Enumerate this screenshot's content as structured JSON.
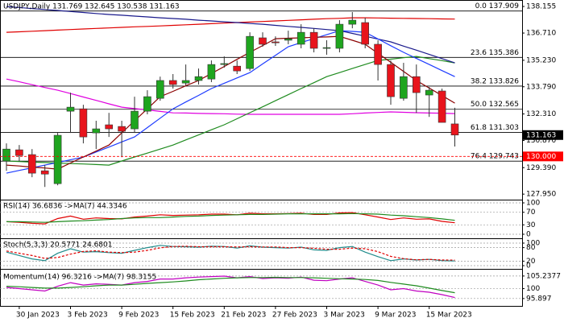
{
  "chart_data": [
    {
      "type": "candlestick",
      "title": "USDJPY,Daily  131.769 132.645 130.538 131.163",
      "categories": [
        null,
        "30 Jan 2023",
        null,
        null,
        null,
        "3 Feb 2023",
        null,
        null,
        null,
        "9 Feb 2023",
        null,
        null,
        null,
        "15 Feb 2023",
        null,
        null,
        null,
        "21 Feb 2023",
        null,
        null,
        null,
        "27 Feb 2023",
        null,
        null,
        null,
        "3 Mar 2023",
        null,
        null,
        null,
        "9 Mar 2023",
        null,
        null,
        null,
        "15 Mar 2023",
        null,
        null
      ],
      "open": [
        129.75,
        130.36,
        130.1,
        129.22,
        128.52,
        132.46,
        132.59,
        131.28,
        131.72,
        131.63,
        131.5,
        132.46,
        133.16,
        134.13,
        133.99,
        134.13,
        134.21,
        135.0,
        134.91,
        134.78,
        136.45,
        136.23,
        136.32,
        136.1,
        136.75,
        135.88,
        135.88,
        137.19,
        137.28,
        136.1,
        135.0,
        133.16,
        134.34,
        133.34,
        133.56,
        131.769
      ],
      "high": [
        130.71,
        130.62,
        130.4,
        129.53,
        131.28,
        133.47,
        132.81,
        131.94,
        132.37,
        131.94,
        133.25,
        133.6,
        134.34,
        134.48,
        135.0,
        134.78,
        135.22,
        135.44,
        135.22,
        136.75,
        136.75,
        136.53,
        136.84,
        137.19,
        136.97,
        136.32,
        137.41,
        137.85,
        137.54,
        136.32,
        135.22,
        135.09,
        135.0,
        133.78,
        133.69,
        132.645
      ],
      "low": [
        129.22,
        129.75,
        128.87,
        128.34,
        128.43,
        131.28,
        130.71,
        130.4,
        131.06,
        129.96,
        131.28,
        132.29,
        133.03,
        133.69,
        133.86,
        133.91,
        134.04,
        134.83,
        134.48,
        134.65,
        135.97,
        136.01,
        136.1,
        135.88,
        135.66,
        135.53,
        135.66,
        136.97,
        135.88,
        134.13,
        132.81,
        133.03,
        132.37,
        132.15,
        131.85,
        130.538
      ],
      "close": [
        130.4,
        130.05,
        129.09,
        129.04,
        131.15,
        132.68,
        131.06,
        131.5,
        131.5,
        131.37,
        132.46,
        133.25,
        134.13,
        133.91,
        134.13,
        134.34,
        135.0,
        135.05,
        134.65,
        136.53,
        136.1,
        136.18,
        136.4,
        136.75,
        135.88,
        135.92,
        137.19,
        137.41,
        136.1,
        135.0,
        133.25,
        134.34,
        133.47,
        133.6,
        131.85,
        131.163
      ],
      "up_color": "#1fa51f",
      "down_color": "#e8141c",
      "series": [
        {
          "color": "#e00000",
          "values": [
            136.75,
            136.78,
            136.81,
            136.84,
            136.87,
            136.9,
            136.93,
            136.96,
            136.99,
            137.02,
            137.05,
            137.07,
            137.1,
            137.13,
            137.16,
            137.19,
            137.22,
            137.25,
            137.28,
            137.31,
            137.34,
            137.37,
            137.4,
            137.43,
            137.46,
            137.49,
            137.51,
            137.54,
            137.54,
            137.53,
            137.52,
            137.51,
            137.5,
            137.49,
            137.48,
            137.47
          ]
        },
        {
          "color": "#e000e0",
          "values": [
            134.21,
            134.06,
            133.9,
            133.75,
            133.6,
            133.42,
            133.23,
            133.05,
            132.86,
            132.68,
            132.6,
            132.53,
            132.45,
            132.37,
            132.36,
            132.34,
            132.33,
            132.32,
            132.3,
            132.29,
            132.29,
            132.29,
            132.29,
            132.29,
            132.29,
            132.29,
            132.29,
            132.32,
            132.36,
            132.39,
            132.42,
            132.4,
            132.38,
            132.36,
            132.35,
            132.33
          ]
        },
        {
          "color": "#1f8b1f",
          "values": [
            129.75,
            129.72,
            129.69,
            129.67,
            129.64,
            129.61,
            129.59,
            129.56,
            129.53,
            129.75,
            129.97,
            130.18,
            130.4,
            130.62,
            130.9,
            131.17,
            131.45,
            131.72,
            132.05,
            132.38,
            132.7,
            133.03,
            133.36,
            133.69,
            134.01,
            134.34,
            134.56,
            134.78,
            135.0,
            135.22,
            135.29,
            135.37,
            135.44,
            135.32,
            135.21,
            135.09
          ]
        },
        {
          "color": "#1a1a8c",
          "values": [
            138.15,
            138.1,
            138.04,
            137.99,
            137.94,
            137.88,
            137.83,
            137.77,
            137.72,
            137.68,
            137.63,
            137.59,
            137.54,
            137.5,
            137.46,
            137.41,
            137.37,
            137.32,
            137.28,
            137.23,
            137.19,
            137.13,
            137.07,
            137.02,
            136.96,
            136.9,
            136.84,
            136.69,
            136.54,
            136.38,
            136.23,
            136.0,
            135.78,
            135.55,
            135.32,
            135.09
          ]
        },
        {
          "color": "#1e3cff",
          "values": [
            129.09,
            129.24,
            129.38,
            129.53,
            129.67,
            129.82,
            129.96,
            130.24,
            130.51,
            130.79,
            131.06,
            131.57,
            132.08,
            132.59,
            132.96,
            133.32,
            133.69,
            133.98,
            134.27,
            134.56,
            135.03,
            135.5,
            135.97,
            136.19,
            136.41,
            136.62,
            136.84,
            136.8,
            136.75,
            136.39,
            136.02,
            135.66,
            135.33,
            135.0,
            134.67,
            134.34
          ]
        },
        {
          "color": "#8b0000",
          "values": [
            129.53,
            129.48,
            129.42,
            129.37,
            129.31,
            129.64,
            129.97,
            130.29,
            130.62,
            131.28,
            131.94,
            132.59,
            133.25,
            133.54,
            133.84,
            134.13,
            134.51,
            134.89,
            135.28,
            135.66,
            136.03,
            136.4,
            136.43,
            136.45,
            136.48,
            136.5,
            136.53,
            136.32,
            136.1,
            135.61,
            135.12,
            134.62,
            134.13,
            133.72,
            133.31,
            132.9
          ]
        }
      ],
      "fib_levels": [
        {
          "label": "0.0 137.909",
          "value": 137.909
        },
        {
          "label": "23.6 135.386",
          "value": 135.386
        },
        {
          "label": "38.2 133.826",
          "value": 133.826
        },
        {
          "label": "50.0 132.565",
          "value": 132.565
        },
        {
          "label": "61.8 131.303",
          "value": 131.303
        },
        {
          "label": "76.4 129.743",
          "value": 129.743
        }
      ],
      "price_markers": [
        {
          "value": 131.163,
          "color": "#000000"
        },
        {
          "value": 130,
          "label": "130.000",
          "color": "#ff0000",
          "dashed": true
        }
      ],
      "ylim": [
        127.65,
        138.42
      ],
      "yticks": [
        138.155,
        {
          "value": 136.71,
          "label": "136.710"
        },
        {
          "value": 135.23,
          "label": "135.230"
        },
        {
          "value": 133.79,
          "label": "133.790"
        },
        {
          "value": 132.31,
          "label": "132.310"
        },
        {
          "value": 130.87,
          "label": "130.870"
        },
        {
          "value": 129.39,
          "label": "129.390"
        },
        {
          "value": 127.95,
          "label": "127.950"
        }
      ]
    },
    {
      "type": "line",
      "title": "RSI(14) 36.6836 ->MA(7) 44.3346",
      "series": [
        {
          "color": "#e00000",
          "values": [
            40,
            38,
            35,
            33,
            50,
            58,
            48,
            52,
            50,
            49,
            55,
            58,
            62,
            60,
            61,
            62,
            64,
            64,
            62,
            67,
            65,
            65,
            66,
            67,
            63,
            63,
            68,
            69,
            62,
            55,
            47,
            52,
            48,
            49,
            41,
            36.6836
          ]
        },
        {
          "color": "#1f8b1f",
          "values": [
            40,
            40,
            39,
            38,
            40,
            42,
            43,
            45,
            47,
            50,
            52,
            53,
            53,
            55,
            57,
            58,
            60,
            61,
            62,
            63,
            63,
            64,
            65,
            65,
            65,
            65,
            65,
            66,
            65,
            64,
            61,
            59,
            56,
            53,
            49,
            44.3346
          ]
        }
      ],
      "ylim": [
        0,
        100
      ],
      "yticks": [
        0,
        30,
        70,
        100
      ],
      "grid": true
    },
    {
      "type": "line",
      "title": "Stoch(5,3,3) 20.5771 24.6801",
      "series": [
        {
          "color": "#1f8b8b",
          "values": [
            60,
            45,
            30,
            22,
            55,
            75,
            60,
            62,
            58,
            55,
            68,
            80,
            90,
            85,
            84,
            82,
            86,
            85,
            78,
            88,
            82,
            80,
            78,
            82,
            70,
            68,
            80,
            85,
            60,
            40,
            22,
            30,
            25,
            28,
            22,
            20.5771
          ]
        },
        {
          "color": "#e00000",
          "dashed": true,
          "values": [
            65,
            55,
            45,
            32,
            36,
            51,
            63,
            66,
            60,
            58,
            60,
            68,
            79,
            85,
            86,
            84,
            84,
            84,
            83,
            84,
            83,
            83,
            80,
            80,
            77,
            73,
            73,
            78,
            75,
            62,
            41,
            31,
            26,
            28,
            25,
            24.6801
          ]
        }
      ],
      "ylim": [
        0,
        100
      ],
      "yticks": [
        0,
        20,
        80,
        100
      ],
      "grid": true
    },
    {
      "type": "line",
      "title": "Momentum(14) 96.3216 ->MA(7) 98.3155",
      "series": [
        {
          "color": "#c000c0",
          "values": [
            100.5,
            100,
            99.5,
            99,
            101,
            102.5,
            101.5,
            102,
            101.8,
            101.5,
            102.5,
            103,
            104,
            104,
            104.5,
            104.8,
            105,
            105.2,
            104.5,
            105,
            104.2,
            104.5,
            104.3,
            104.8,
            103.5,
            103.3,
            104,
            104.5,
            103,
            101.5,
            99.5,
            100,
            99,
            98.5,
            97.5,
            96.3216
          ]
        },
        {
          "color": "#1f8b1f",
          "values": [
            101,
            100.8,
            100.5,
            100.2,
            100.2,
            100.5,
            100.8,
            101.2,
            101.5,
            101.5,
            101.8,
            102.2,
            102.5,
            102.8,
            103.2,
            103.7,
            104,
            104.3,
            104.5,
            104.6,
            104.6,
            104.7,
            104.6,
            104.6,
            104.5,
            104.3,
            104.1,
            104,
            103.8,
            103.4,
            102.6,
            101.9,
            101.2,
            100.2,
            99.2,
            98.3155
          ]
        }
      ],
      "ylim": [
        93.5,
        107.2
      ],
      "yticks": [
        95.897,
        100,
        105.2377
      ],
      "grid": true
    }
  ]
}
